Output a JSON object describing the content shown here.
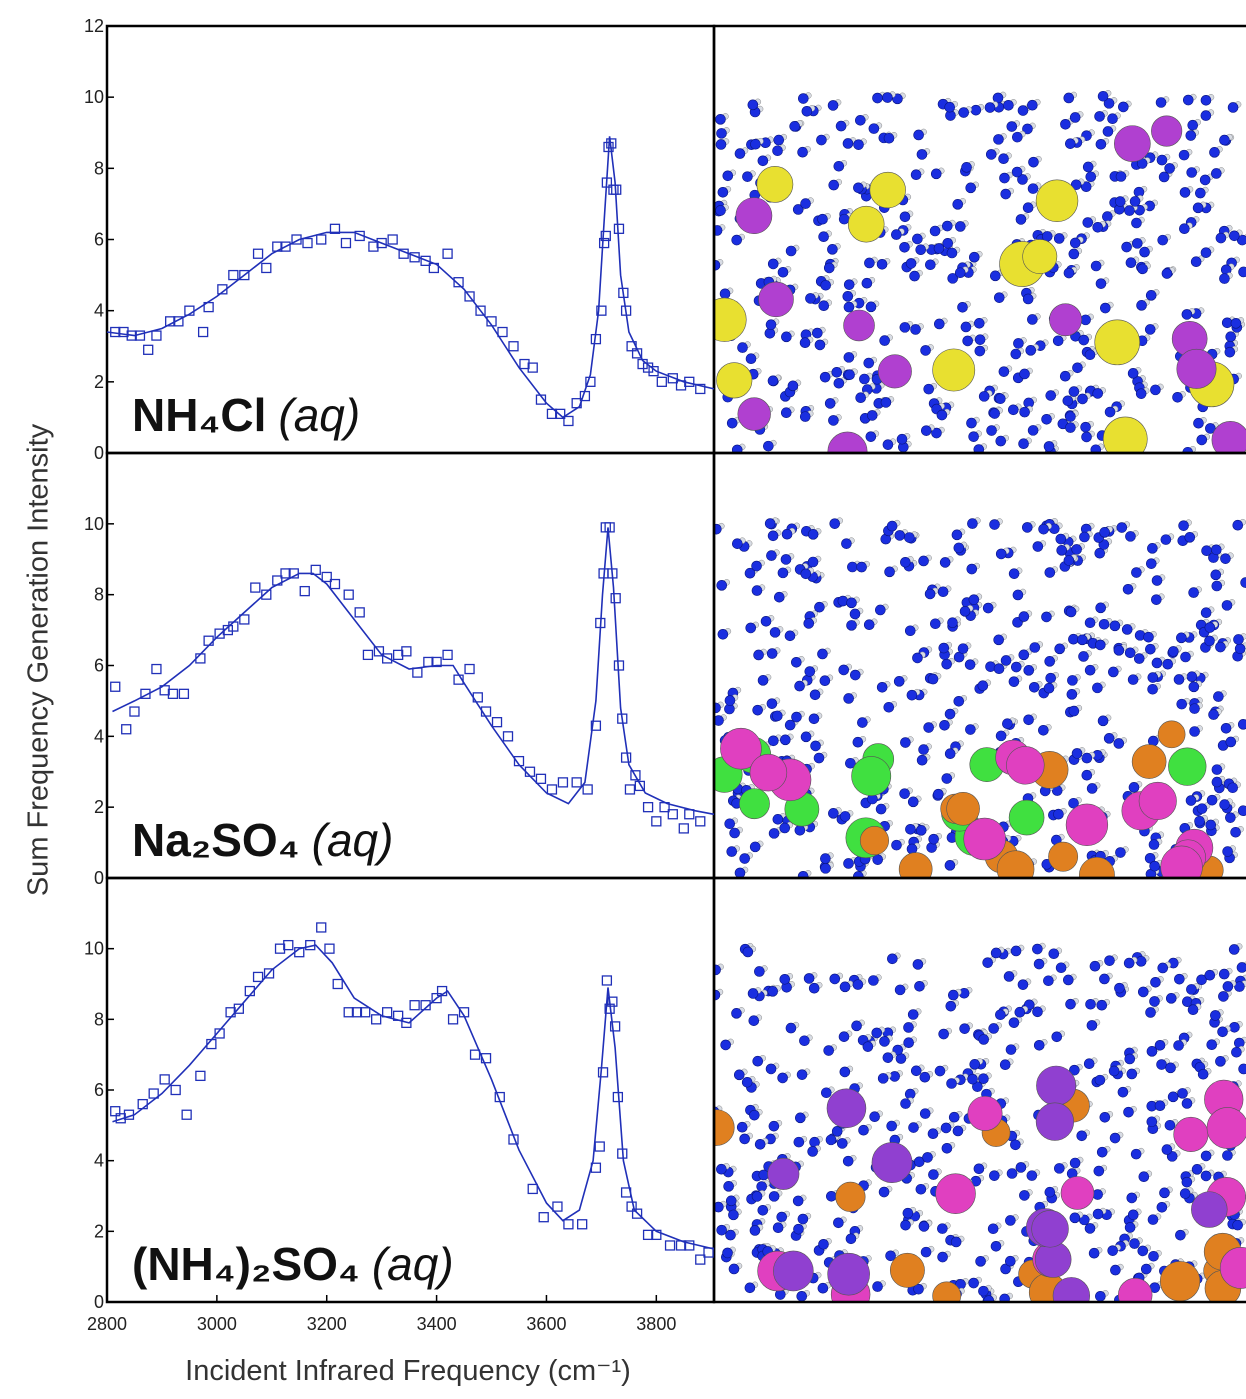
{
  "figure": {
    "ylabel": "Sum Frequency Generation Intensity",
    "xlabel": "Incident Infrared Frequency (cm⁻¹)"
  },
  "chart_data": [
    {
      "type": "scatter",
      "label": "NH₄Cl",
      "phase": "(aq)",
      "color": "#2030b8",
      "xlim": [
        2800,
        3905
      ],
      "ylim": [
        0,
        12
      ],
      "yticks": [
        0,
        2,
        4,
        6,
        8,
        10,
        12
      ],
      "points": {
        "x": [
          2815,
          2830,
          2845,
          2860,
          2875,
          2890,
          2915,
          2930,
          2950,
          2975,
          2985,
          3010,
          3030,
          3050,
          3075,
          3090,
          3110,
          3125,
          3145,
          3165,
          3190,
          3215,
          3235,
          3260,
          3285,
          3300,
          3320,
          3340,
          3360,
          3380,
          3395,
          3420,
          3440,
          3460,
          3480,
          3500,
          3520,
          3540,
          3560,
          3575,
          3590,
          3610,
          3625,
          3640,
          3655,
          3670,
          3680,
          3690,
          3700,
          3705,
          3708,
          3710,
          3713,
          3718,
          3722,
          3727,
          3732,
          3740,
          3745,
          3755,
          3765,
          3775,
          3785,
          3795,
          3810,
          3830,
          3845,
          3860,
          3880
        ],
        "y": [
          3.4,
          3.4,
          3.3,
          3.3,
          2.9,
          3.3,
          3.7,
          3.7,
          4.0,
          3.4,
          4.1,
          4.6,
          5.0,
          5.0,
          5.6,
          5.2,
          5.8,
          5.8,
          6.0,
          5.9,
          6.0,
          6.3,
          5.9,
          6.1,
          5.8,
          5.9,
          6.0,
          5.6,
          5.5,
          5.4,
          5.2,
          5.6,
          4.8,
          4.4,
          4.0,
          3.7,
          3.4,
          3.0,
          2.5,
          2.4,
          1.5,
          1.1,
          1.1,
          0.9,
          1.4,
          1.6,
          2.0,
          3.2,
          4.0,
          5.9,
          6.1,
          7.6,
          8.6,
          8.7,
          7.4,
          7.4,
          6.3,
          4.5,
          4.0,
          3.0,
          2.8,
          2.5,
          2.4,
          2.3,
          2.0,
          2.1,
          1.9,
          2.0,
          1.8
        ]
      },
      "fit": {
        "x": [
          2800,
          2850,
          2900,
          2950,
          3000,
          3050,
          3100,
          3150,
          3200,
          3250,
          3300,
          3350,
          3400,
          3450,
          3500,
          3550,
          3600,
          3630,
          3660,
          3680,
          3695,
          3705,
          3715,
          3725,
          3735,
          3750,
          3775,
          3800,
          3850,
          3905
        ],
        "y": [
          3.4,
          3.3,
          3.5,
          3.9,
          4.4,
          5.0,
          5.6,
          6.0,
          6.2,
          6.2,
          5.9,
          5.6,
          5.3,
          4.6,
          3.6,
          2.4,
          1.4,
          1.0,
          1.3,
          2.2,
          4.0,
          6.5,
          8.9,
          7.6,
          5.0,
          3.4,
          2.6,
          2.3,
          2.0,
          1.8
        ]
      }
    },
    {
      "type": "scatter",
      "label": "Na₂SO₄",
      "phase": "(aq)",
      "color": "#2030b8",
      "xlim": [
        2800,
        3905
      ],
      "ylim": [
        0,
        12
      ],
      "yticks": [
        0,
        2,
        4,
        6,
        8,
        10
      ],
      "points": {
        "x": [
          2815,
          2835,
          2850,
          2870,
          2890,
          2905,
          2920,
          2940,
          2970,
          2985,
          3005,
          3020,
          3030,
          3050,
          3070,
          3090,
          3110,
          3125,
          3140,
          3160,
          3180,
          3200,
          3215,
          3240,
          3260,
          3275,
          3295,
          3310,
          3330,
          3345,
          3365,
          3385,
          3400,
          3420,
          3440,
          3460,
          3475,
          3490,
          3510,
          3530,
          3550,
          3570,
          3590,
          3610,
          3630,
          3655,
          3675,
          3690,
          3698,
          3704,
          3708,
          3715,
          3720,
          3726,
          3732,
          3738,
          3745,
          3752,
          3762,
          3770,
          3785,
          3800,
          3815,
          3830,
          3850,
          3860,
          3880
        ],
        "y": [
          5.4,
          4.2,
          4.7,
          5.2,
          5.9,
          5.3,
          5.2,
          5.2,
          6.2,
          6.7,
          6.9,
          7.0,
          7.1,
          7.3,
          8.2,
          8.0,
          8.4,
          8.6,
          8.6,
          8.1,
          8.7,
          8.5,
          8.3,
          8.0,
          7.5,
          6.3,
          6.4,
          6.2,
          6.3,
          6.4,
          5.8,
          6.1,
          6.1,
          6.3,
          5.6,
          5.9,
          5.1,
          4.7,
          4.4,
          4.0,
          3.3,
          3.0,
          2.8,
          2.5,
          2.7,
          2.7,
          2.5,
          4.3,
          7.2,
          8.6,
          9.9,
          9.9,
          8.6,
          7.9,
          6.0,
          4.5,
          3.4,
          2.5,
          2.9,
          2.6,
          2.0,
          1.6,
          2.0,
          1.8,
          1.4,
          1.8,
          1.6
        ]
      },
      "fit": {
        "x": [
          2810,
          2850,
          2900,
          2950,
          3000,
          3050,
          3100,
          3150,
          3175,
          3200,
          3250,
          3300,
          3350,
          3400,
          3430,
          3450,
          3500,
          3550,
          3600,
          3640,
          3670,
          3690,
          3702,
          3712,
          3722,
          3735,
          3750,
          3780,
          3820,
          3870,
          3905
        ],
        "y": [
          4.7,
          5.0,
          5.4,
          6.0,
          6.8,
          7.5,
          8.2,
          8.6,
          8.6,
          8.3,
          7.3,
          6.3,
          5.9,
          6.0,
          6.0,
          5.5,
          4.3,
          3.2,
          2.4,
          2.1,
          2.7,
          5.0,
          8.0,
          9.9,
          8.2,
          4.8,
          3.2,
          2.4,
          2.1,
          1.9,
          1.8
        ]
      }
    },
    {
      "type": "scatter",
      "label": "(NH₄)₂SO₄",
      "phase": "(aq)",
      "color": "#2030b8",
      "xlim": [
        2800,
        3905
      ],
      "ylim": [
        0,
        12
      ],
      "yticks": [
        0,
        2,
        4,
        6,
        8,
        10
      ],
      "xticks": [
        2800,
        3000,
        3200,
        3400,
        3600,
        3800
      ],
      "points": {
        "x": [
          2815,
          2825,
          2840,
          2865,
          2885,
          2905,
          2925,
          2945,
          2970,
          2990,
          3005,
          3025,
          3040,
          3060,
          3075,
          3095,
          3115,
          3130,
          3150,
          3170,
          3190,
          3205,
          3220,
          3240,
          3255,
          3270,
          3290,
          3310,
          3330,
          3345,
          3360,
          3380,
          3400,
          3410,
          3430,
          3450,
          3470,
          3490,
          3515,
          3540,
          3575,
          3595,
          3620,
          3640,
          3665,
          3690,
          3697,
          3703,
          3710,
          3715,
          3720,
          3725,
          3730,
          3738,
          3745,
          3755,
          3765,
          3785,
          3800,
          3825,
          3845,
          3860,
          3880,
          3895
        ],
        "y": [
          5.4,
          5.2,
          5.3,
          5.6,
          5.9,
          6.3,
          6.0,
          5.3,
          6.4,
          7.3,
          7.6,
          8.2,
          8.3,
          8.8,
          9.2,
          9.3,
          10.0,
          10.1,
          9.9,
          10.1,
          10.6,
          10.0,
          9.0,
          8.2,
          8.2,
          8.2,
          8.0,
          8.2,
          8.1,
          7.9,
          8.4,
          8.4,
          8.6,
          8.8,
          8.0,
          8.2,
          7.0,
          6.9,
          5.8,
          4.6,
          3.2,
          2.4,
          2.7,
          2.2,
          2.2,
          3.8,
          4.4,
          6.5,
          9.1,
          8.3,
          8.5,
          7.8,
          5.8,
          4.2,
          3.1,
          2.7,
          2.5,
          1.9,
          1.9,
          1.6,
          1.6,
          1.6,
          1.2,
          1.4
        ]
      },
      "fit": {
        "x": [
          2810,
          2850,
          2900,
          2950,
          3000,
          3050,
          3100,
          3150,
          3180,
          3210,
          3250,
          3300,
          3350,
          3400,
          3420,
          3450,
          3500,
          3550,
          3600,
          3630,
          3660,
          3685,
          3700,
          3712,
          3725,
          3740,
          3760,
          3800,
          3850,
          3905
        ],
        "y": [
          5.1,
          5.3,
          5.9,
          6.7,
          7.6,
          8.5,
          9.4,
          10.0,
          10.1,
          9.6,
          8.6,
          8.1,
          7.9,
          8.6,
          8.8,
          8.1,
          6.3,
          4.3,
          2.8,
          2.3,
          2.6,
          4.0,
          6.6,
          8.9,
          7.2,
          4.0,
          2.6,
          2.0,
          1.7,
          1.5
        ]
      }
    }
  ]
}
